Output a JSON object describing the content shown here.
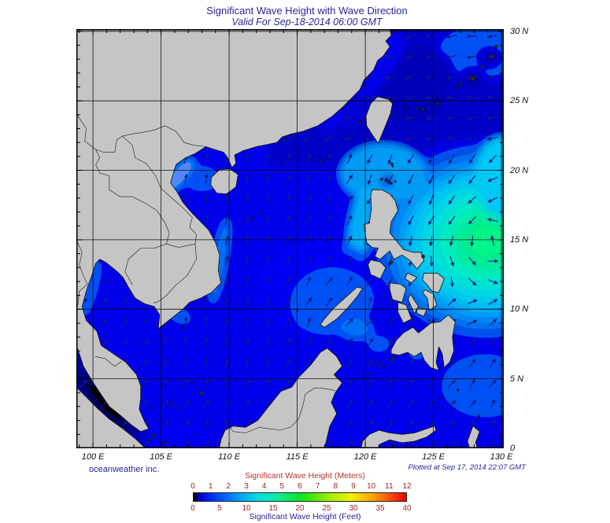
{
  "header": {
    "title": "Significant Wave Height with Wave Direction",
    "subtitle": "Valid For Sep-18-2014 06:00 GMT"
  },
  "map": {
    "x_axis_labels": [
      "100 E",
      "105 E",
      "110 E",
      "115 E",
      "120 E",
      "125 E",
      "130 E"
    ],
    "y_axis_labels": [
      "30 N",
      "25 N",
      "20 N",
      "15 N",
      "10 N",
      "5 N",
      "0"
    ],
    "lon_gridlines": [
      100,
      105,
      110,
      115,
      120,
      125,
      130
    ],
    "lat_gridlines": [
      30,
      25,
      20,
      15,
      10,
      5,
      0
    ],
    "lon_range": [
      98.78,
      130.17
    ],
    "lat_range": [
      0,
      30.16
    ]
  },
  "credits": {
    "left": "oceanweather inc.",
    "right": "Plotted at Sep 17, 2014 22:07 GMT"
  },
  "legend": {
    "meters": {
      "title": "Significant Wave Height (Meters)",
      "ticks": [
        "0",
        "1",
        "2",
        "3",
        "4",
        "5",
        "6",
        "7",
        "8",
        "9",
        "10",
        "11",
        "12"
      ]
    },
    "feet": {
      "title": "Significant Wave Height (Feet)",
      "ticks": [
        "0",
        "5",
        "10",
        "15",
        "20",
        "25",
        "30",
        "35",
        "40"
      ]
    },
    "gradient_stops": [
      [
        "#000000",
        0
      ],
      [
        "#0000c8",
        3
      ],
      [
        "#0033ff",
        9
      ],
      [
        "#0077ff",
        17
      ],
      [
        "#00b4ff",
        24
      ],
      [
        "#00e2e0",
        31
      ],
      [
        "#00ef9e",
        39
      ],
      [
        "#00e532",
        49
      ],
      [
        "#55e800",
        57
      ],
      [
        "#a8f000",
        65
      ],
      [
        "#f2f200",
        74
      ],
      [
        "#ffb400",
        82
      ],
      [
        "#ff5f00",
        91
      ],
      [
        "#e80000",
        100
      ]
    ]
  },
  "colors": {
    "title_text": "#26269d",
    "axis_text": "#111111",
    "credit_text": "#26269d",
    "meters_title": "#b8322a",
    "meters_text": "#a3251d",
    "feet_title": "#26269d",
    "feet_text": "#a3251d",
    "land": "#c5c5c5",
    "coast": "#111111",
    "border_line": "#1a1a1a",
    "grid": "#000000",
    "arrow": "#151a80",
    "ocean_base": "#1733e6",
    "ocean_north_dark": "#0d23c8",
    "ocean_deep_pocket": "#0a1cb6",
    "typhoon_green": "#2df07e",
    "typhoon_cyan": "#29e2d4",
    "typhoon_lightblue": "#2fc4f0",
    "malacca_dark": "#010330"
  }
}
